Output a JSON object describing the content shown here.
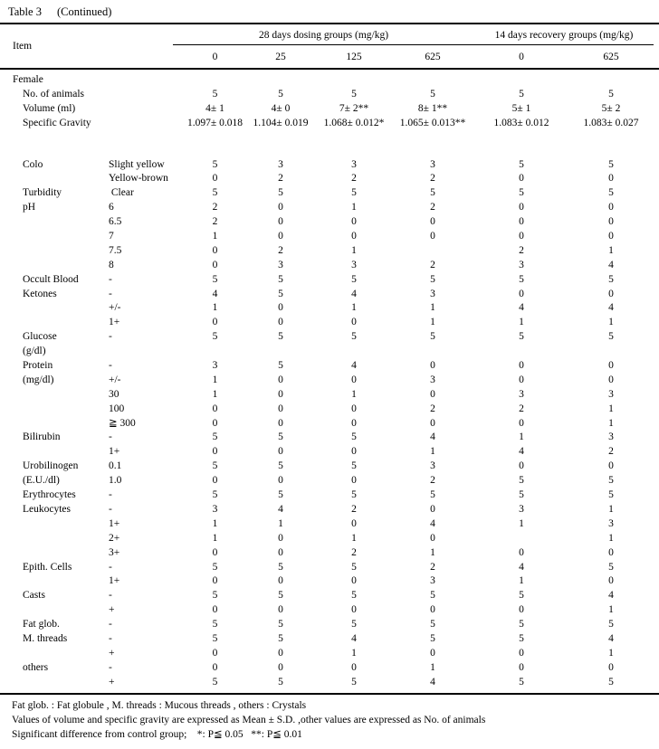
{
  "title": {
    "table": "Table 3",
    "continued": "(Continued)"
  },
  "header": {
    "item_label": "Item",
    "group_labels": [
      "28 days dosing groups (mg/kg)",
      "14 days recovery groups (mg/kg)"
    ],
    "dose_columns": [
      "0",
      "25",
      "125",
      "625",
      "0",
      "625"
    ]
  },
  "table": {
    "rows": [
      {
        "t": "section",
        "label": "Female",
        "sub": "",
        "v": [
          "",
          "",
          "",
          "",
          "",
          ""
        ]
      },
      {
        "t": "item",
        "label": "No. of animals",
        "sub": "",
        "v": [
          "5",
          "5",
          "5",
          "5",
          "5",
          "5"
        ]
      },
      {
        "t": "item",
        "label": "Volume (ml)",
        "sub": "",
        "v": [
          "4± 1",
          "4± 0",
          "7± 2**",
          "8± 1**",
          "5± 1",
          "5± 2"
        ]
      },
      {
        "t": "item",
        "label": "Specific Gravity",
        "sub": "",
        "v": [
          "1.097± 0.018",
          "1.104± 0.019",
          "1.068± 0.012*",
          "1.065± 0.013**",
          "1.083± 0.012",
          "1.083± 0.027"
        ]
      },
      {
        "t": "gap",
        "label": "",
        "sub": "",
        "v": []
      },
      {
        "t": "item",
        "label": "Colo",
        "sub": "Slight yellow",
        "v": [
          "5",
          "3",
          "3",
          "3",
          "5",
          "5"
        ]
      },
      {
        "t": "item",
        "label": "",
        "sub": "Yellow-brown",
        "v": [
          "0",
          "2",
          "2",
          "2",
          "0",
          "0"
        ]
      },
      {
        "t": "item",
        "label": "Turbidity",
        "sub": " Clear",
        "v": [
          "5",
          "5",
          "5",
          "5",
          "5",
          "5"
        ]
      },
      {
        "t": "item",
        "label": "pH",
        "sub": "6",
        "v": [
          "2",
          "0",
          "1",
          "2",
          "0",
          "0"
        ]
      },
      {
        "t": "item",
        "label": "",
        "sub": "6.5",
        "v": [
          "2",
          "0",
          "0",
          "0",
          "0",
          "0"
        ]
      },
      {
        "t": "item",
        "label": "",
        "sub": "7",
        "v": [
          "1",
          "0",
          "0",
          "0",
          "0",
          "0"
        ]
      },
      {
        "t": "item",
        "label": "",
        "sub": "7.5",
        "v": [
          "0",
          "2",
          "1",
          "",
          "2",
          "1"
        ]
      },
      {
        "t": "item",
        "label": "",
        "sub": "8",
        "v": [
          "0",
          "3",
          "3",
          "2",
          "3",
          "4"
        ]
      },
      {
        "t": "item",
        "label": "Occult Blood",
        "sub": "-",
        "v": [
          "5",
          "5",
          "5",
          "5",
          "5",
          "5"
        ]
      },
      {
        "t": "item",
        "label": "Ketones",
        "sub": "-",
        "v": [
          "4",
          "5",
          "4",
          "3",
          "0",
          "0"
        ]
      },
      {
        "t": "item",
        "label": "",
        "sub": "+/-",
        "v": [
          "1",
          "0",
          "1",
          "1",
          "4",
          "4"
        ]
      },
      {
        "t": "item",
        "label": "",
        "sub": "1+",
        "v": [
          "0",
          "0",
          "0",
          "1",
          "1",
          "1"
        ]
      },
      {
        "t": "item",
        "label": "Glucose",
        "sub": "-",
        "v": [
          "5",
          "5",
          "5",
          "5",
          "5",
          "5"
        ]
      },
      {
        "t": "item",
        "label": "(g/dl)",
        "sub": "",
        "v": [
          "",
          "",
          "",
          "",
          "",
          ""
        ]
      },
      {
        "t": "item",
        "label": "Protein",
        "sub": "-",
        "v": [
          "3",
          "5",
          "4",
          "0",
          "0",
          "0"
        ]
      },
      {
        "t": "item",
        "label": "(mg/dl)",
        "sub": "+/-",
        "v": [
          "1",
          "0",
          "0",
          "3",
          "0",
          "0"
        ]
      },
      {
        "t": "item",
        "label": "",
        "sub": "30",
        "v": [
          "1",
          "0",
          "1",
          "0",
          "3",
          "3"
        ]
      },
      {
        "t": "item",
        "label": "",
        "sub": "100",
        "v": [
          "0",
          "0",
          "0",
          "2",
          "2",
          "1"
        ]
      },
      {
        "t": "item",
        "label": "",
        "sub": "≧ 300",
        "v": [
          "0",
          "0",
          "0",
          "0",
          "0",
          "1"
        ]
      },
      {
        "t": "item",
        "label": "Bilirubin",
        "sub": "-",
        "v": [
          "5",
          "5",
          "5",
          "4",
          "1",
          "3"
        ]
      },
      {
        "t": "item",
        "label": "",
        "sub": "1+",
        "v": [
          "0",
          "0",
          "0",
          "1",
          "4",
          "2"
        ]
      },
      {
        "t": "item",
        "label": "Urobilinogen",
        "sub": "0.1",
        "v": [
          "5",
          "5",
          "5",
          "3",
          "0",
          "0"
        ]
      },
      {
        "t": "item",
        "label": "(E.U./dl)",
        "sub": "1.0",
        "v": [
          "0",
          "0",
          "0",
          "2",
          "5",
          "5"
        ]
      },
      {
        "t": "item",
        "label": "Erythrocytes",
        "sub": "-",
        "v": [
          "5",
          "5",
          "5",
          "5",
          "5",
          "5"
        ]
      },
      {
        "t": "item",
        "label": "Leukocytes",
        "sub": "-",
        "v": [
          "3",
          "4",
          "2",
          "0",
          "3",
          "1"
        ]
      },
      {
        "t": "item",
        "label": "",
        "sub": "1+",
        "v": [
          "1",
          "1",
          "0",
          "4",
          "1",
          "3"
        ]
      },
      {
        "t": "item",
        "label": "",
        "sub": "2+",
        "v": [
          "1",
          "0",
          "1",
          "0",
          "",
          "1"
        ]
      },
      {
        "t": "item",
        "label": "",
        "sub": "3+",
        "v": [
          "0",
          "0",
          "2",
          "1",
          "0",
          "0"
        ]
      },
      {
        "t": "item",
        "label": "Epith. Cells",
        "sub": "-",
        "v": [
          "5",
          "5",
          "5",
          "2",
          "4",
          "5"
        ]
      },
      {
        "t": "item",
        "label": "",
        "sub": "1+",
        "v": [
          "0",
          "0",
          "0",
          "3",
          "1",
          "0"
        ]
      },
      {
        "t": "item",
        "label": "Casts",
        "sub": "-",
        "v": [
          "5",
          "5",
          "5",
          "5",
          "5",
          "4"
        ]
      },
      {
        "t": "item",
        "label": "",
        "sub": "+",
        "v": [
          "0",
          "0",
          "0",
          "0",
          "0",
          "1"
        ]
      },
      {
        "t": "item",
        "label": "Fat glob.",
        "sub": "-",
        "v": [
          "5",
          "5",
          "5",
          "5",
          "5",
          "5"
        ]
      },
      {
        "t": "item",
        "label": "M. threads",
        "sub": "-",
        "v": [
          "5",
          "5",
          "4",
          "5",
          "5",
          "4"
        ]
      },
      {
        "t": "item",
        "label": "",
        "sub": "+",
        "v": [
          "0",
          "0",
          "1",
          "0",
          "0",
          "1"
        ]
      },
      {
        "t": "item",
        "label": "others",
        "sub": "-",
        "v": [
          "0",
          "0",
          "0",
          "1",
          "0",
          "0"
        ]
      },
      {
        "t": "item",
        "label": "",
        "sub": "+",
        "v": [
          "5",
          "5",
          "5",
          "4",
          "5",
          "5"
        ]
      }
    ]
  },
  "footnotes": [
    "Fat glob. : Fat globule , M. threads : Mucous threads , others : Crystals",
    "Values of volume and specific gravity are expressed as Mean ± S.D. ,other values are expressed as No. of animals",
    "Significant difference from control group;    *: P≦ 0.05   **: P≦ 0.01"
  ]
}
